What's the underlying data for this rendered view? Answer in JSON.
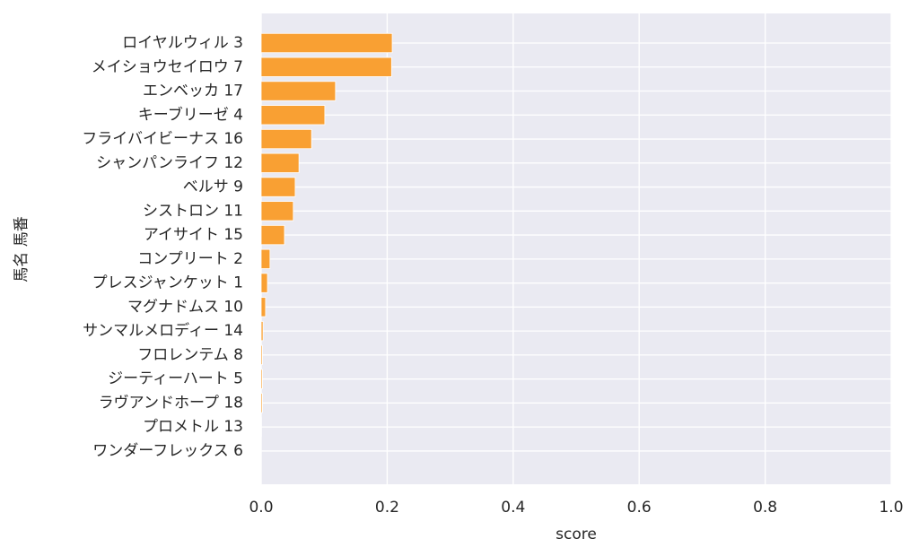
{
  "chart_data": {
    "type": "barh",
    "categories": [
      "ロイヤルウィル 3",
      "メイショウセイロウ 7",
      "エンベッカ 17",
      "キーブリーゼ 4",
      "フライバイビーナス 16",
      "シャンパンライフ 12",
      "ベルサ 9",
      "シストロン 11",
      "アイサイト 15",
      "コンプリート 2",
      "プレスジャンケット 1",
      "マグナドムス 10",
      "サンマルメロディー 14",
      "フロレンテム 8",
      "ジーティーハート 5",
      "ラヴアンドホープ 18",
      "プロメトル 13",
      "ワンダーフレックス 6"
    ],
    "values": [
      0.208,
      0.207,
      0.118,
      0.101,
      0.08,
      0.06,
      0.054,
      0.051,
      0.037,
      0.014,
      0.01,
      0.007,
      0.003,
      0.002,
      0.002,
      0.002,
      0.0005,
      0
    ],
    "color": "#f9a033",
    "xlabel": "score",
    "ylabel": "馬名 馬番",
    "xlim": [
      0,
      1
    ],
    "xticks": [
      {
        "value": 0,
        "label": "0.0"
      },
      0.2,
      0.4,
      0.6,
      0.8,
      {
        "value": 1,
        "label": "1.0"
      }
    ],
    "grid": true
  }
}
